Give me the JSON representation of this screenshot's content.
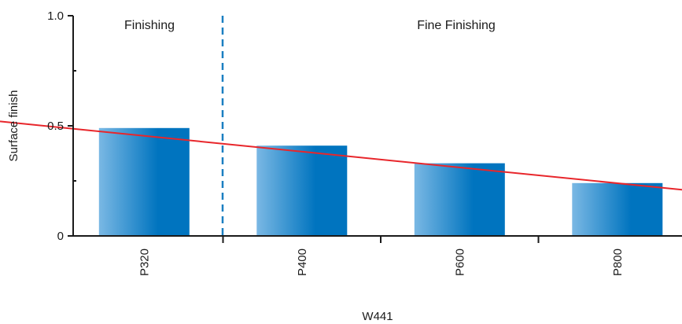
{
  "chart_data": {
    "type": "bar",
    "xlabel": "W441",
    "ylabel": "Surface finish",
    "ylim": [
      0,
      1.0
    ],
    "yticks": [
      {
        "value": 0,
        "label": "0"
      },
      {
        "value": 0.5,
        "label": "0.5"
      },
      {
        "value": 1.0,
        "label": "1.0"
      }
    ],
    "categories": [
      "P320",
      "P400",
      "P600",
      "P800"
    ],
    "values": [
      0.49,
      0.41,
      0.33,
      0.24
    ],
    "regions": [
      {
        "label": "Finishing",
        "categories": [
          "P320"
        ]
      },
      {
        "label": "Fine Finishing",
        "categories": [
          "P400",
          "P600",
          "P800"
        ]
      }
    ],
    "trend_line": {
      "start": 0.52,
      "end": 0.21
    },
    "colors": {
      "bar_light": "#7ab8e4",
      "bar_dark": "#0074bf",
      "trend": "#e8262b",
      "divider": "#1a7fc1",
      "axis": "#1a1a1a"
    }
  }
}
